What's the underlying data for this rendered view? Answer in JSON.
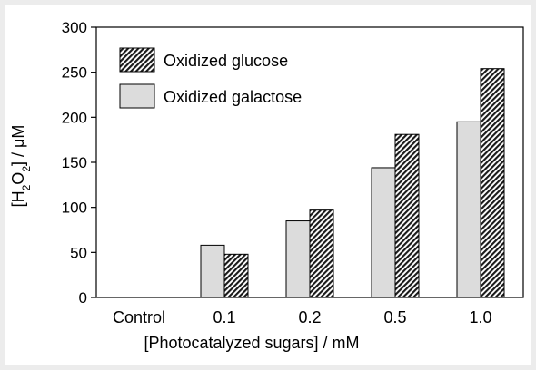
{
  "chart_data": {
    "type": "bar",
    "categories": [
      "Control",
      "0.1",
      "0.2",
      "0.5",
      "1.0"
    ],
    "series": [
      {
        "name": "Oxidized galactose",
        "values": [
          0,
          58,
          85,
          144,
          195
        ],
        "style": "light-gray",
        "color": "#dcdcdc"
      },
      {
        "name": "Oxidized glucose",
        "values": [
          0,
          48,
          97,
          181,
          254
        ],
        "style": "hatched",
        "color": "#ffffff"
      }
    ],
    "xlabel": "[Photocatalyzed sugars] / mM",
    "ylabel": "[H2O2] / μM",
    "ylim": [
      0,
      300
    ],
    "yticks": [
      0,
      50,
      100,
      150,
      200,
      250,
      300
    ],
    "grid": false,
    "legend_position": "top-left",
    "legend_order": [
      "Oxidized glucose",
      "Oxidized galactose"
    ]
  }
}
